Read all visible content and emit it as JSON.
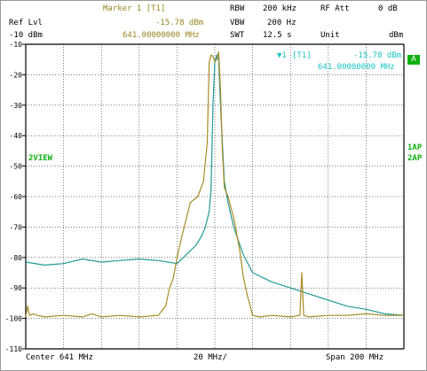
{
  "header": {
    "marker_title": "Marker 1 [T1]",
    "ref_label": "Ref Lvl",
    "ref_value": "-10 dBm",
    "marker_level": "-15.78 dBm",
    "marker_freq": "641.00000000 MHz",
    "rbw_label": "RBW",
    "rbw_value": "200 kHz",
    "vbw_label": "VBW",
    "vbw_value": "200 Hz",
    "swt_label": "SWT",
    "swt_value": "12.5 s",
    "rfatt_label": "RF Att",
    "rfatt_value": "0 dB",
    "unit_label": "Unit",
    "unit_value": "dBm"
  },
  "overlay": {
    "marker_symbol": "▼1",
    "marker_tag": "[T1]",
    "marker_level": "-15.78 dBm",
    "marker_freq": "641.00000000 MHz",
    "badge_a": "A",
    "trace_mode": "2VIEW",
    "det_1": "1AP",
    "det_2": "2AP"
  },
  "footer": {
    "center": "Center 641 MHz",
    "div": "20 MHz/",
    "span": "Span 200 MHz"
  },
  "colors": {
    "trace1": "#1f9a96",
    "trace2": "#a88c24",
    "grid": "#000000",
    "header_gold": "#9a8420",
    "annotation_cyan": "#18c4c4",
    "annotation_green": "#10b010"
  },
  "chart_data": {
    "type": "line",
    "title": "",
    "xlabel": "",
    "ylabel": "",
    "xlim": [
      541,
      741
    ],
    "ylim": [
      -110,
      -10
    ],
    "y_ticks": [
      -10,
      -20,
      -30,
      -40,
      -50,
      -60,
      -70,
      -80,
      -90,
      -100,
      -110
    ],
    "grid": true,
    "series": [
      {
        "x": [
          541,
          551,
          561,
          571,
          581,
          591,
          601,
          611,
          621,
          626,
          631,
          634,
          636,
          638,
          639,
          640,
          641,
          642,
          643,
          644,
          646,
          648,
          651,
          656,
          661,
          671,
          681,
          691,
          701,
          711,
          721,
          731,
          741
        ],
        "y": [
          -81.5,
          -82.5,
          -82,
          -80.5,
          -81.5,
          -81,
          -80.5,
          -81,
          -82,
          -79,
          -76,
          -73,
          -70,
          -65,
          -58,
          -30,
          -15.8,
          -13.5,
          -15,
          -30,
          -55,
          -62,
          -70,
          -79,
          -85,
          -88,
          -90,
          -92,
          -94,
          -96,
          -97,
          -98.5,
          -99
        ]
      },
      {
        "x": [
          541,
          542,
          543,
          545,
          547,
          551,
          561,
          571,
          576,
          581,
          591,
          601,
          611,
          615,
          617,
          619,
          621,
          624,
          628,
          632,
          635,
          637,
          638,
          639,
          640,
          641,
          642,
          643,
          644,
          645,
          646,
          648,
          651,
          654,
          656,
          658,
          661,
          665,
          671,
          681,
          686,
          687,
          688,
          691,
          701,
          711,
          721,
          731,
          741
        ],
        "y": [
          -99.5,
          -96,
          -99,
          -98.5,
          -99,
          -99.5,
          -99,
          -99.5,
          -98.5,
          -99.5,
          -99,
          -99.5,
          -99,
          -96,
          -90,
          -87,
          -80,
          -72,
          -62,
          -60,
          -55,
          -42,
          -16,
          -13.5,
          -14,
          -15.78,
          -15,
          -12.5,
          -25,
          -45,
          -57,
          -60,
          -67,
          -77,
          -86,
          -92,
          -99,
          -99.5,
          -99,
          -99.5,
          -99,
          -85,
          -99,
          -99.5,
          -99,
          -99,
          -98.5,
          -99,
          -99
        ]
      }
    ]
  }
}
